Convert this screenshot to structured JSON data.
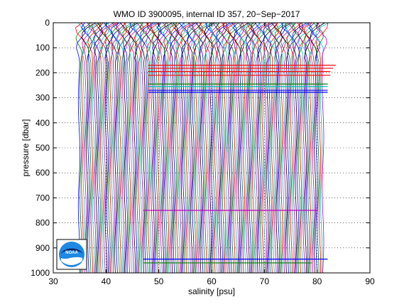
{
  "chart_data": {
    "type": "line",
    "title": "WMO ID 3900095, internal ID 357, 20−Sep−2017",
    "xlabel": "salinity [psu]",
    "ylabel": "pressure [dbar]",
    "xlim": [
      30,
      90
    ],
    "ylim": [
      0,
      1000
    ],
    "y_reversed": true,
    "grid": "dotted",
    "x_ticks": [
      30,
      40,
      50,
      60,
      70,
      80,
      90
    ],
    "y_ticks": [
      0,
      100,
      200,
      300,
      400,
      500,
      600,
      700,
      800,
      900,
      1000
    ],
    "profile_count": 155,
    "profile_offset_per_cycle": 0.3,
    "profile_start_salinity": 34.9,
    "series_colors": [
      "#0000ff",
      "#008000",
      "#ff0000",
      "#00bfbf",
      "#bf00bf",
      "#000000"
    ],
    "spikes": [
      {
        "pressure": 170,
        "x_from": 48,
        "x_to": 83.5,
        "color": "#ff0000"
      },
      {
        "pressure": 182,
        "x_from": 48,
        "x_to": 83.0,
        "color": "#ff0000"
      },
      {
        "pressure": 195,
        "x_from": 48,
        "x_to": 82.5,
        "color": "#ff0000"
      },
      {
        "pressure": 210,
        "x_from": 48,
        "x_to": 82.5,
        "color": "#ff0000"
      },
      {
        "pressure": 245,
        "x_from": 48,
        "x_to": 82.0,
        "color": "#008000"
      },
      {
        "pressure": 255,
        "x_from": 48,
        "x_to": 82.0,
        "color": "#00bfbf"
      },
      {
        "pressure": 270,
        "x_from": 48,
        "x_to": 82.0,
        "color": "#0000ff"
      },
      {
        "pressure": 278,
        "x_from": 48,
        "x_to": 82.0,
        "color": "#0000ff"
      },
      {
        "pressure": 750,
        "x_from": 47,
        "x_to": 80.0,
        "color": "#bf00bf"
      },
      {
        "pressure": 945,
        "x_from": 47,
        "x_to": 82.0,
        "color": "#0000ff"
      },
      {
        "pressure": 960,
        "x_from": 47,
        "x_to": 79.0,
        "color": "#008000"
      }
    ]
  },
  "logo": {
    "text": "NOAA"
  }
}
